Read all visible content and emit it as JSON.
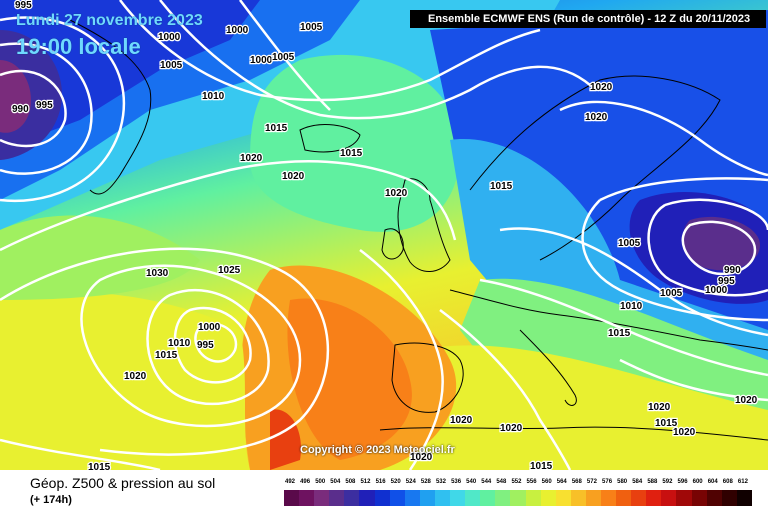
{
  "overlay": {
    "date": "Lundi 27 novembre 2023",
    "time": "19:00 locale",
    "run": "Ensemble ECMWF ENS  (Run de contrôle)  -  12 Z du 20/11/2023",
    "copyright": "Copyright © 2023 Meteociel.fr"
  },
  "legend": {
    "title": "Géop. Z500 & pression au sol",
    "subtitle": "(+ 174h)",
    "scale_values": [
      "492",
      "496",
      "500",
      "504",
      "508",
      "512",
      "516",
      "520",
      "524",
      "528",
      "532",
      "536",
      "540",
      "544",
      "548",
      "552",
      "556",
      "560",
      "564",
      "568",
      "572",
      "576",
      "580",
      "584",
      "588",
      "592",
      "596",
      "600",
      "604",
      "608",
      "612"
    ],
    "scale_colors": [
      "#5a0a4a",
      "#6e1260",
      "#7a2c7c",
      "#5a2e8c",
      "#3c2ea0",
      "#2020b8",
      "#1030d0",
      "#1050e8",
      "#1878f0",
      "#20a0f0",
      "#30c0f0",
      "#40d8e8",
      "#50e8c8",
      "#60f0a0",
      "#80f080",
      "#a0f060",
      "#c8f040",
      "#e8f030",
      "#f8e030",
      "#f8c028",
      "#f8a020",
      "#f88018",
      "#f06010",
      "#e84010",
      "#e02010",
      "#c81010",
      "#a00808",
      "#780404",
      "#500202",
      "#300000",
      "#100000"
    ]
  },
  "isobars": [
    {
      "label": "995"
    },
    {
      "label": "1005"
    },
    {
      "label": "1000"
    },
    {
      "label": "1000"
    },
    {
      "label": "1000"
    },
    {
      "label": "1005"
    },
    {
      "label": "990"
    },
    {
      "label": "995"
    },
    {
      "label": "1005"
    },
    {
      "label": "1010"
    },
    {
      "label": "1015"
    },
    {
      "label": "1015"
    },
    {
      "label": "1020"
    },
    {
      "label": "1020"
    },
    {
      "label": "1020"
    },
    {
      "label": "1020"
    },
    {
      "label": "1020"
    },
    {
      "label": "1015"
    },
    {
      "label": "1005"
    },
    {
      "label": "990"
    },
    {
      "label": "995"
    },
    {
      "label": "1005"
    },
    {
      "label": "1000"
    },
    {
      "label": "1010"
    },
    {
      "label": "1015"
    },
    {
      "label": "1030"
    },
    {
      "label": "1025"
    },
    {
      "label": "1000"
    },
    {
      "label": "1010"
    },
    {
      "label": "995"
    },
    {
      "label": "1015"
    },
    {
      "label": "1020"
    },
    {
      "label": "1020"
    },
    {
      "label": "1020"
    },
    {
      "label": "1020"
    },
    {
      "label": "1020"
    },
    {
      "label": "1015"
    },
    {
      "label": "1020"
    },
    {
      "label": "1020"
    },
    {
      "label": "1015"
    },
    {
      "label": "1015"
    }
  ]
}
